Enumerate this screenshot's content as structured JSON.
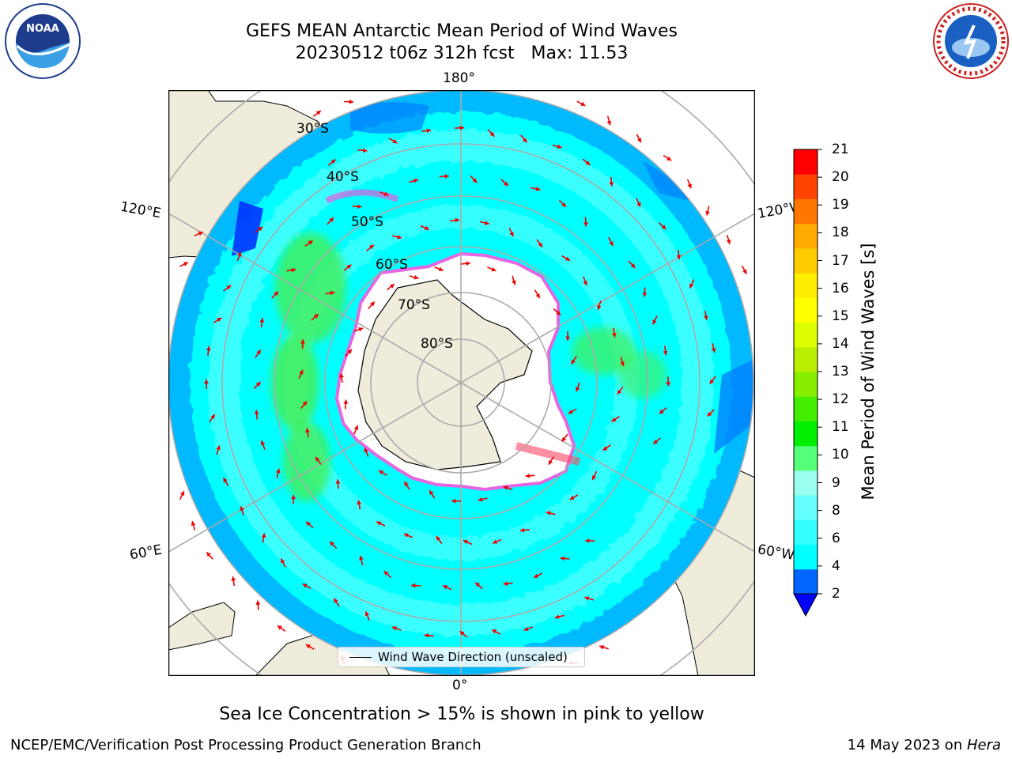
{
  "title": {
    "line1": "GEFS MEAN Antarctic Mean Period of Wind Waves",
    "line2": "20230512 t06z 312h fcst   Max: 11.53"
  },
  "logos": {
    "left": "noaa-logo",
    "right": "national-weather-service-logo"
  },
  "map": {
    "projection": "south-polar-stereographic",
    "lon_labels": {
      "top": "180°",
      "left_upper": "120°E",
      "right_upper": "120°W",
      "left_lower": "60°E",
      "right_lower": "60°W",
      "bottom": "0°"
    },
    "lat_labels": [
      "30°S",
      "40°S",
      "50°S",
      "60°S",
      "70°S",
      "80°S"
    ],
    "colors": {
      "land": "#efecdc",
      "ocean_main": "#00ffff",
      "ocean_light": "#55ffff",
      "ocean_blue": "#0080ff",
      "green": "#44ee55",
      "ice_edge": "#ff44dd",
      "arrow": "#ee0000",
      "grid": "#aaaaaa"
    }
  },
  "legend": {
    "label": "Wind Wave Direction (unscaled)"
  },
  "colorbar": {
    "label": "Mean Period of Wind Waves [s]",
    "ticks": [
      "2",
      "4",
      "6",
      "8",
      "9",
      "10",
      "11",
      "12",
      "13",
      "14",
      "15",
      "16",
      "17",
      "18",
      "19",
      "20",
      "21"
    ],
    "colors": [
      "#0066ff",
      "#00ffff",
      "#33ffff",
      "#66ffff",
      "#99ffee",
      "#55ff77",
      "#00ee00",
      "#44ee00",
      "#88ee00",
      "#bbee00",
      "#ddff00",
      "#ffff00",
      "#ffee00",
      "#ffcc00",
      "#ffaa00",
      "#ff7700",
      "#ff4400",
      "#ff0000"
    ],
    "extend_color": "#0000ff"
  },
  "caption": "Sea Ice Concentration > 15% is shown in pink to yellow",
  "footer": {
    "left": "NCEP/EMC/Verification Post Processing Product Generation Branch",
    "right_text": "14 May 2023 on ",
    "right_italic": "Hera"
  }
}
